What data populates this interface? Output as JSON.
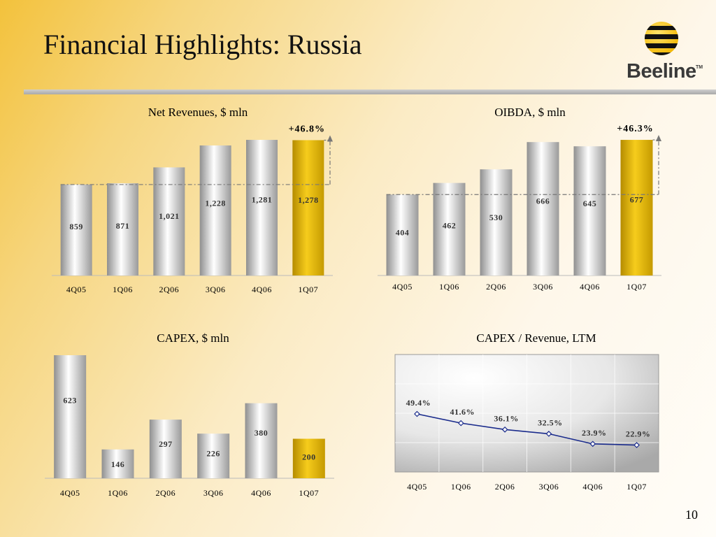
{
  "page": {
    "title": "Financial Highlights: Russia",
    "page_number": "10"
  },
  "logo": {
    "brand": "Beeline",
    "trademark": "TM"
  },
  "colors": {
    "highlight": "#f0c419",
    "silver": "#d9d9d9",
    "line": "#1a2b8c"
  },
  "chart_data": [
    {
      "type": "bar",
      "title": "Net Revenues, $ mln",
      "categories": [
        "4Q05",
        "1Q06",
        "2Q06",
        "3Q06",
        "4Q06",
        "1Q07"
      ],
      "values": [
        859,
        871,
        1021,
        1228,
        1281,
        1278
      ],
      "value_labels": [
        "859",
        "871",
        "1,021",
        "1,228",
        "1,281",
        "1,278"
      ],
      "ylim": [
        0,
        1400
      ],
      "highlight_index": 5,
      "growth_annotation": "+46.8%"
    },
    {
      "type": "bar",
      "title": "OIBDA, $ mln",
      "categories": [
        "4Q05",
        "1Q06",
        "2Q06",
        "3Q06",
        "4Q06",
        "1Q07"
      ],
      "values": [
        404,
        462,
        530,
        666,
        645,
        677
      ],
      "value_labels": [
        "404",
        "462",
        "530",
        "666",
        "645",
        "677"
      ],
      "ylim": [
        0,
        740
      ],
      "highlight_index": 5,
      "growth_annotation": "+46.3%"
    },
    {
      "type": "bar",
      "title": "CAPEX, $ mln",
      "categories": [
        "4Q05",
        "1Q06",
        "2Q06",
        "3Q06",
        "4Q06",
        "1Q07"
      ],
      "values": [
        623,
        146,
        297,
        226,
        380,
        200
      ],
      "value_labels": [
        "623",
        "146",
        "297",
        "226",
        "380",
        "200"
      ],
      "ylim": [
        0,
        623
      ],
      "highlight_index": 5
    },
    {
      "type": "line",
      "title": "CAPEX / Revenue, LTM",
      "categories": [
        "4Q05",
        "1Q06",
        "2Q06",
        "3Q06",
        "4Q06",
        "1Q07"
      ],
      "values": [
        49.4,
        41.6,
        36.1,
        32.5,
        23.9,
        22.9
      ],
      "value_labels": [
        "49.4%",
        "41.6%",
        "36.1%",
        "32.5%",
        "23.9%",
        "22.9%"
      ],
      "ylim": [
        0,
        100
      ],
      "grid": true
    }
  ]
}
